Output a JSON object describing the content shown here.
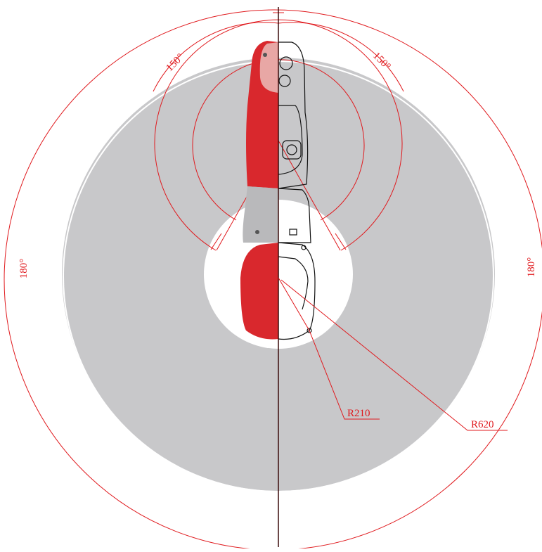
{
  "angle_labels": [
    "150°",
    "150°",
    "180°",
    "180°"
  ],
  "radius_labels": [
    "R210",
    "R620"
  ]
}
